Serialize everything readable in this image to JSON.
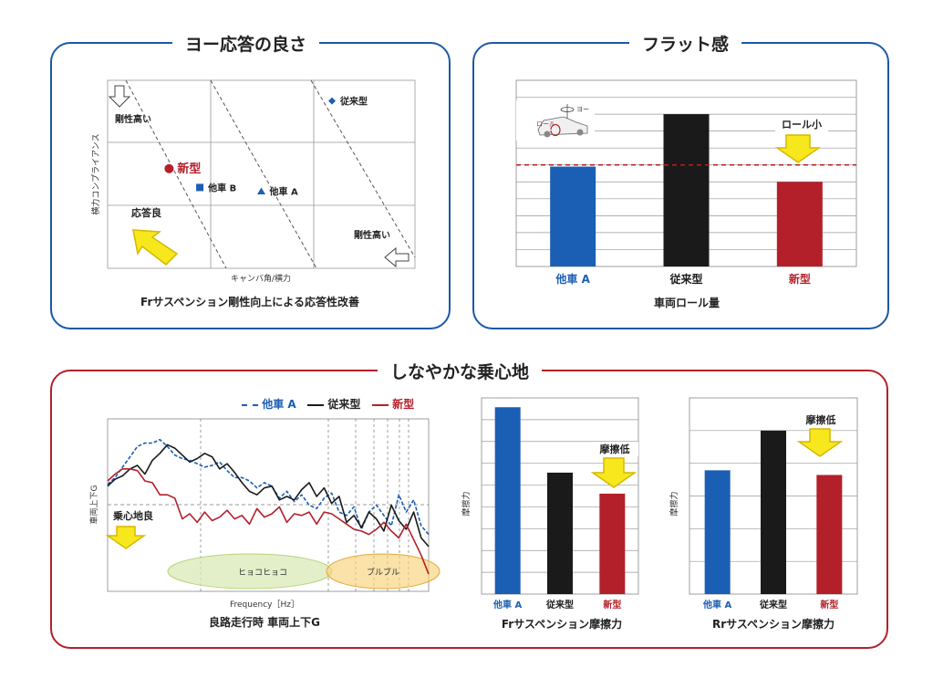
{
  "colors": {
    "blue": "#1b5fb4",
    "red": "#b3202a",
    "black": "#1a1a1a",
    "arrow": "#f7e71d"
  },
  "sections": {
    "yaw": "ヨー応答の良さ",
    "flat": "フラット感",
    "ride": "しなやかな乗心地"
  },
  "chart_data": [
    {
      "type": "scatter",
      "title": "",
      "caption": "Frサスペンション剛性向上による応答性改善",
      "xlabel": "キャンバ角/横力",
      "ylabel": "横力コンプライアンス",
      "annotations": {
        "stiff_top": "剛性高い",
        "stiff_bottom": "剛性高い",
        "response": "応答良"
      },
      "series": [
        {
          "name": "従来型",
          "marker": "diamond",
          "x": 0.73,
          "y": 0.89
        },
        {
          "name": "新型",
          "marker": "circle",
          "x": 0.2,
          "y": 0.53
        },
        {
          "name": "他車 B",
          "marker": "square",
          "x": 0.3,
          "y": 0.43
        },
        {
          "name": "他車 A",
          "marker": "triangle",
          "x": 0.5,
          "y": 0.41
        }
      ]
    },
    {
      "type": "bar",
      "caption": "車両ロール量",
      "categories": [
        "他車 A",
        "従来型",
        "新型"
      ],
      "values": [
        5.9,
        9.0,
        5.0
      ],
      "ylim": [
        0,
        11
      ],
      "reference_line": 6.0,
      "annotation": "ロール小",
      "icon_labels": {
        "yaw": "ヨー",
        "roll": "ロール"
      }
    },
    {
      "type": "line",
      "caption": "良路走行時 車両上下G",
      "xlabel": "Frequency［Hz］",
      "ylabel": "車両上下G",
      "annotation": "乗心地良",
      "bands": [
        "ヒョコヒョコ",
        "ブルブル"
      ],
      "ylim": [
        0,
        10
      ],
      "reference_line": 5,
      "series": [
        {
          "name": "他車 A",
          "style": "dashed",
          "values": [
            6.2,
            6.6,
            7.2,
            7.8,
            8.4,
            8.6,
            8.6,
            8.8,
            8.4,
            7.9,
            7.7,
            7.6,
            7.4,
            7.2,
            7.3,
            7.5,
            7.0,
            6.6,
            6.6,
            6.4,
            6.0,
            6.3,
            6.1,
            5.4,
            5.8,
            5.2,
            5.6,
            5.0,
            4.8,
            5.4,
            5.7,
            4.6,
            4.4,
            4.9,
            3.6,
            4.6,
            5.0,
            4.4,
            3.8,
            5.6,
            4.6,
            5.3,
            3.8,
            3.3
          ]
        },
        {
          "name": "従来型",
          "style": "solid",
          "values": [
            6.1,
            6.5,
            6.7,
            7.1,
            7.3,
            6.8,
            7.6,
            8.0,
            8.5,
            8.3,
            7.9,
            7.5,
            7.7,
            8.0,
            7.8,
            7.1,
            7.4,
            6.9,
            6.3,
            5.8,
            5.6,
            6.0,
            6.1,
            5.3,
            5.5,
            5.3,
            5.9,
            6.3,
            5.5,
            6.0,
            5.1,
            5.5,
            4.0,
            4.4,
            3.7,
            4.6,
            4.2,
            3.5,
            5.0,
            4.1,
            3.6,
            4.6,
            3.1,
            2.6
          ]
        },
        {
          "name": "新型",
          "style": "solid",
          "values": [
            6.4,
            6.8,
            7.1,
            7.1,
            7.0,
            6.4,
            6.3,
            5.6,
            5.6,
            5.4,
            4.2,
            4.5,
            4.0,
            4.6,
            4.1,
            4.3,
            4.7,
            4.2,
            4.4,
            3.9,
            4.8,
            4.3,
            4.5,
            4.9,
            4.0,
            4.5,
            4.4,
            4.6,
            3.9,
            4.6,
            4.5,
            4.2,
            3.9,
            3.6,
            3.5,
            3.3,
            3.6,
            4.0,
            3.5,
            3.1,
            3.9,
            3.0,
            2.1,
            1.0
          ]
        }
      ]
    },
    {
      "type": "bar",
      "caption": "Frサスペンション摩擦力",
      "ylabel": "摩擦力",
      "categories": [
        "他車 A",
        "従来型",
        "新型"
      ],
      "values": [
        8.0,
        5.2,
        4.3
      ],
      "ylim": [
        0,
        8.4
      ],
      "annotation": "摩擦低"
    },
    {
      "type": "bar",
      "caption": "Rrサスペンション摩擦力",
      "ylabel": "摩擦力",
      "categories": [
        "他車 A",
        "従来型",
        "新型"
      ],
      "values": [
        5.3,
        7.0,
        5.1
      ],
      "ylim": [
        0,
        8.4
      ],
      "annotation": "摩擦低"
    }
  ]
}
